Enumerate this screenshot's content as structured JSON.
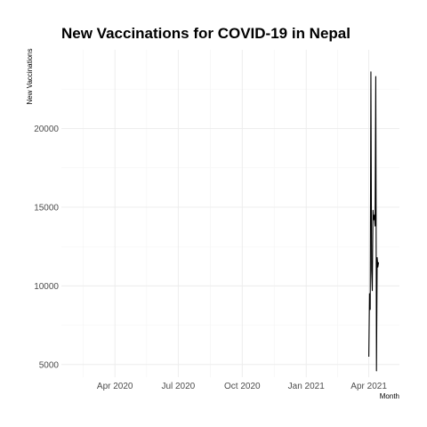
{
  "chart_data": {
    "type": "line",
    "title": "New Vaccinations for COVID-19 in Nepal",
    "xlabel": "Month",
    "ylabel": "New Vaccinations",
    "x_ticks": [
      {
        "date": "2020-04-01",
        "label": "Apr 2020"
      },
      {
        "date": "2020-07-01",
        "label": "Jul 2020"
      },
      {
        "date": "2020-10-01",
        "label": "Oct 2020"
      },
      {
        "date": "2021-01-01",
        "label": "Jan 2021"
      },
      {
        "date": "2021-04-01",
        "label": "Apr 2021"
      }
    ],
    "y_ticks": [
      5000,
      10000,
      15000,
      20000
    ],
    "xlim": [
      "2020-01-15",
      "2021-05-15"
    ],
    "ylim": [
      4200,
      25000
    ],
    "grid": true,
    "line_color": "#000000",
    "series": [
      {
        "x": [
          "2021-04-01",
          "2021-04-02",
          "2021-04-03",
          "2021-04-04",
          "2021-04-05",
          "2021-04-06",
          "2021-04-07",
          "2021-04-08",
          "2021-04-09",
          "2021-04-10",
          "2021-04-11",
          "2021-04-12",
          "2021-04-13",
          "2021-04-14",
          "2021-04-15"
        ],
        "y": [
          5500,
          9500,
          8500,
          23600,
          11000,
          9700,
          14800,
          14200,
          14500,
          13800,
          23300,
          4600,
          11800,
          11200,
          11500
        ]
      }
    ]
  }
}
